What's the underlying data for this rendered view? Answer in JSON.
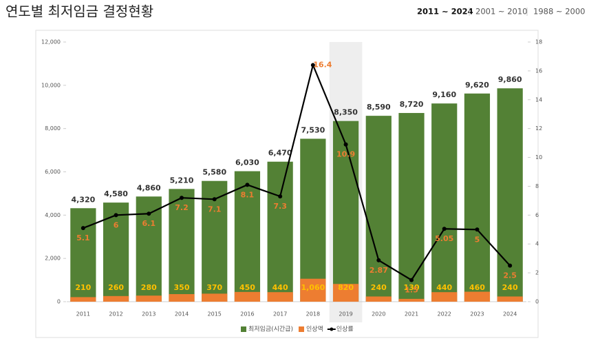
{
  "header": {
    "title": "연도별 최저임금 결정현황",
    "tabs": [
      "2011 ~ 2024",
      "2001 ~ 2010",
      "1988 ~ 2000"
    ],
    "active_tab": 0
  },
  "chart_data": {
    "type": "bar-line",
    "categories": [
      "2011",
      "2012",
      "2013",
      "2014",
      "2015",
      "2016",
      "2017",
      "2018",
      "2019",
      "2020",
      "2021",
      "2022",
      "2023",
      "2024"
    ],
    "highlight_category": "2019",
    "series": [
      {
        "name": "최저임금(시간급)",
        "type": "bar",
        "color": "#538135",
        "values": [
          4320,
          4580,
          4860,
          5210,
          5580,
          6030,
          6470,
          7530,
          8350,
          8590,
          8720,
          9160,
          9620,
          9860
        ],
        "value_labels": [
          "4,320",
          "4,580",
          "4,860",
          "5,210",
          "5,580",
          "6,030",
          "6,470",
          "7,530",
          "8,350",
          "8,590",
          "8,720",
          "9,160",
          "9,620",
          "9,860"
        ]
      },
      {
        "name": "인상액",
        "type": "bar",
        "color": "#ed7d31",
        "values": [
          210,
          260,
          280,
          350,
          370,
          450,
          440,
          1060,
          820,
          240,
          130,
          440,
          460,
          240
        ],
        "value_labels": [
          "210",
          "260",
          "280",
          "350",
          "370",
          "450",
          "440",
          "1,060",
          "820",
          "240",
          "130",
          "440",
          "460",
          "240"
        ]
      },
      {
        "name": "인상률",
        "type": "line",
        "axis": "y2",
        "color": "#000000",
        "values": [
          5.1,
          6,
          6.1,
          7.2,
          7.1,
          8.1,
          7.3,
          16.4,
          10.9,
          2.87,
          1.5,
          5.05,
          5,
          2.5
        ]
      }
    ],
    "ylim": [
      0,
      12000
    ],
    "yticks": [
      0,
      {
        "value": 2000,
        "label": "2,000"
      },
      {
        "value": 4000,
        "label": "4,000"
      },
      {
        "value": 6000,
        "label": "6,000"
      },
      {
        "value": 8000,
        "label": "8,000"
      },
      {
        "value": 10000,
        "label": "10,000"
      },
      {
        "value": 12000,
        "label": "12,000"
      }
    ],
    "y2lim": [
      0,
      18
    ],
    "y2ticks": [
      0,
      2,
      4,
      6,
      8,
      10,
      12,
      14,
      16,
      18
    ],
    "grid": false,
    "legend": "bottom"
  }
}
